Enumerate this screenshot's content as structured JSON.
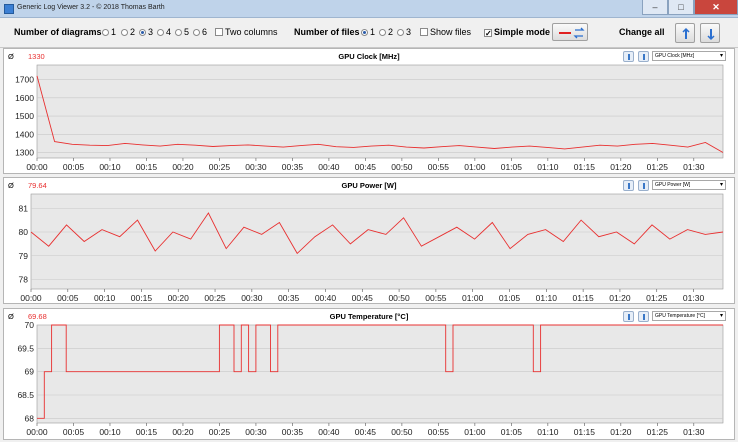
{
  "window": {
    "title": "Generic Log Viewer 3.2 - © 2018 Thomas Barth"
  },
  "toolbar": {
    "diagrams_label": "Number of diagrams",
    "diagram_options": [
      "1",
      "2",
      "3",
      "4",
      "5",
      "6"
    ],
    "diagrams_selected": "3",
    "two_columns_label": "Two columns",
    "files_label": "Number of files",
    "file_options": [
      "1",
      "2",
      "3"
    ],
    "files_selected": "1",
    "show_files_label": "Show files",
    "simple_mode_label": "Simple mode",
    "simple_mode_checked": true,
    "change_all_label": "Change all"
  },
  "x_ticks": [
    "00:00",
    "00:05",
    "00:10",
    "00:15",
    "00:20",
    "00:25",
    "00:30",
    "00:35",
    "00:40",
    "00:45",
    "00:50",
    "00:55",
    "01:00",
    "01:05",
    "01:10",
    "01:15",
    "01:20",
    "01:25",
    "01:30"
  ],
  "colors": {
    "series": "#e83030",
    "grid": "#c8c8c8",
    "plot_bg": "#e8e8e8"
  },
  "panels": [
    {
      "avg_symbol": "Ø",
      "avg_value": "1330",
      "title": "GPU Clock [MHz]",
      "selector": "GPU Clock [MHz]"
    },
    {
      "avg_symbol": "Ø",
      "avg_value": "79.64",
      "title": "GPU Power [W]",
      "selector": "GPU Power [W]"
    },
    {
      "avg_symbol": "Ø",
      "avg_value": "69.68",
      "title": "GPU Temperature [°C]",
      "selector": "GPU Temperature [°C]"
    }
  ],
  "chart_data": [
    {
      "type": "line",
      "title": "GPU Clock [MHz]",
      "x_range": [
        "00:00",
        "01:34"
      ],
      "ylim": [
        1270,
        1780
      ],
      "yticks": [
        "1700",
        "1600",
        "1500",
        "1400",
        "1300"
      ],
      "series": [
        {
          "values": [
            1720,
            1360,
            1345,
            1340,
            1338,
            1350,
            1342,
            1335,
            1345,
            1340,
            1333,
            1338,
            1342,
            1335,
            1330,
            1338,
            1345,
            1332,
            1328,
            1335,
            1340,
            1330,
            1325,
            1332,
            1338,
            1330,
            1322,
            1330,
            1335,
            1328,
            1320,
            1330,
            1340,
            1335,
            1345,
            1350,
            1340,
            1330,
            1355,
            1300
          ]
        }
      ]
    },
    {
      "type": "line",
      "title": "GPU Power [W]",
      "x_range": [
        "00:00",
        "01:34"
      ],
      "ylim": [
        77.6,
        81.6
      ],
      "yticks": [
        "81",
        "80",
        "79",
        "78"
      ],
      "series": [
        {
          "values": [
            80.0,
            79.4,
            80.3,
            79.6,
            80.1,
            79.8,
            80.5,
            79.2,
            80.0,
            79.7,
            80.8,
            79.3,
            80.2,
            79.9,
            80.4,
            79.1,
            79.8,
            80.3,
            79.5,
            80.1,
            79.9,
            80.6,
            79.4,
            79.8,
            80.2,
            79.7,
            80.4,
            79.3,
            79.9,
            80.1,
            79.6,
            80.5,
            79.8,
            80.0,
            79.5,
            80.3,
            79.7,
            80.1,
            79.9,
            80.0
          ]
        }
      ]
    },
    {
      "type": "line",
      "title": "GPU Temperature [°C]",
      "x_range": [
        "00:00",
        "01:34"
      ],
      "ylim": [
        67.9,
        70.0
      ],
      "yticks": [
        "70",
        "69.5",
        "69",
        "68.5",
        "68"
      ],
      "series": [
        {
          "values": [
            68,
            69,
            70,
            70,
            69,
            69,
            69,
            69,
            69,
            69,
            69,
            69,
            69,
            69,
            69,
            69,
            69,
            69,
            69,
            69,
            69,
            69,
            69,
            69,
            69,
            70,
            70,
            69,
            70,
            69,
            70,
            70,
            69,
            70,
            70,
            70,
            70,
            70,
            70,
            70,
            70,
            70,
            70,
            70,
            70,
            70,
            70,
            70,
            70,
            70,
            70,
            70,
            70,
            70,
            70,
            70,
            69,
            70,
            70,
            70,
            70,
            70,
            70,
            70,
            70,
            70,
            70,
            70,
            69,
            70,
            70,
            70,
            70,
            70,
            70,
            70,
            70,
            70,
            70,
            70,
            70,
            70,
            70,
            70,
            70,
            70,
            70,
            70,
            70,
            70,
            70,
            70,
            70,
            70,
            70
          ]
        }
      ]
    }
  ]
}
